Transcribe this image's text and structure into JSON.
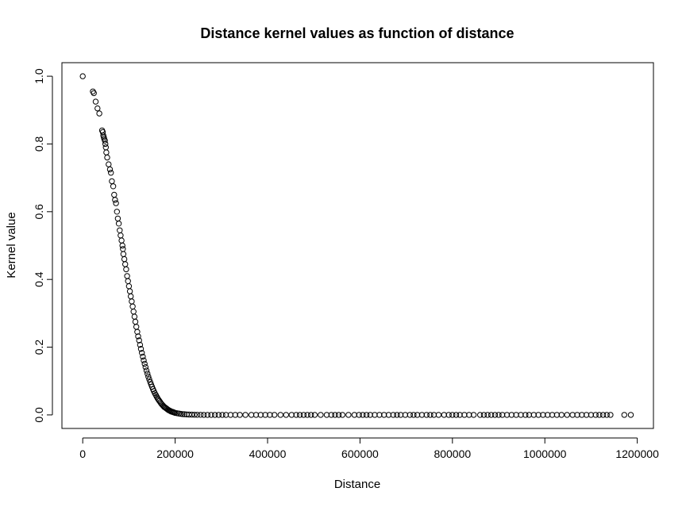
{
  "chart_data": {
    "type": "scatter",
    "title": "Distance kernel values as function of distance",
    "xlabel": "Distance",
    "ylabel": "Kernel value",
    "xlim": [
      -45000,
      1235000
    ],
    "ylim": [
      -0.04,
      1.04
    ],
    "xticks": [
      0,
      200000,
      400000,
      600000,
      800000,
      1000000,
      1200000
    ],
    "xtick_labels": [
      "0",
      "200000",
      "400000",
      "600000",
      "800000",
      "1000000",
      "1200000"
    ],
    "yticks": [
      0.0,
      0.2,
      0.4,
      0.6,
      0.8,
      1.0
    ],
    "ytick_labels": [
      "0.0",
      "0.2",
      "0.4",
      "0.6",
      "0.8",
      "1.0"
    ],
    "grid": false,
    "legend": "none",
    "marker": "open-circle",
    "colors": {
      "points": "#000000",
      "frame": "#000000",
      "background": "#ffffff"
    },
    "points": [
      [
        0,
        1.0
      ],
      [
        22000,
        0.955
      ],
      [
        24000,
        0.95
      ],
      [
        28000,
        0.925
      ],
      [
        32000,
        0.905
      ],
      [
        36000,
        0.89
      ],
      [
        42000,
        0.84
      ],
      [
        43500,
        0.835
      ],
      [
        44500,
        0.825
      ],
      [
        45500,
        0.82
      ],
      [
        46500,
        0.815
      ],
      [
        48000,
        0.81
      ],
      [
        49000,
        0.8
      ],
      [
        50000,
        0.79
      ],
      [
        51000,
        0.775
      ],
      [
        53000,
        0.76
      ],
      [
        56000,
        0.74
      ],
      [
        59000,
        0.725
      ],
      [
        61000,
        0.715
      ],
      [
        63000,
        0.69
      ],
      [
        66000,
        0.675
      ],
      [
        68000,
        0.65
      ],
      [
        70000,
        0.635
      ],
      [
        72000,
        0.625
      ],
      [
        74000,
        0.6
      ],
      [
        76000,
        0.58
      ],
      [
        78000,
        0.565
      ],
      [
        80000,
        0.545
      ],
      [
        82000,
        0.53
      ],
      [
        84000,
        0.515
      ],
      [
        86000,
        0.5
      ],
      [
        87000,
        0.49
      ],
      [
        88000,
        0.475
      ],
      [
        90000,
        0.46
      ],
      [
        92000,
        0.445
      ],
      [
        94000,
        0.43
      ],
      [
        96000,
        0.41
      ],
      [
        98000,
        0.395
      ],
      [
        100000,
        0.38
      ],
      [
        102000,
        0.365
      ],
      [
        104000,
        0.35
      ],
      [
        106000,
        0.335
      ],
      [
        108000,
        0.32
      ],
      [
        110000,
        0.305
      ],
      [
        112000,
        0.29
      ],
      [
        114000,
        0.275
      ],
      [
        116000,
        0.26
      ],
      [
        118000,
        0.245
      ],
      [
        120000,
        0.232
      ],
      [
        122000,
        0.22
      ],
      [
        124000,
        0.207
      ],
      [
        126000,
        0.195
      ],
      [
        128000,
        0.183
      ],
      [
        130000,
        0.172
      ],
      [
        132000,
        0.161
      ],
      [
        134000,
        0.151
      ],
      [
        136000,
        0.141
      ],
      [
        138000,
        0.131
      ],
      [
        140000,
        0.122
      ],
      [
        142000,
        0.113
      ],
      [
        144000,
        0.105
      ],
      [
        146000,
        0.097
      ],
      [
        148000,
        0.09
      ],
      [
        150000,
        0.083
      ],
      [
        152000,
        0.076
      ],
      [
        154000,
        0.07
      ],
      [
        156000,
        0.064
      ],
      [
        158000,
        0.059
      ],
      [
        160000,
        0.054
      ],
      [
        162000,
        0.049
      ],
      [
        164000,
        0.045
      ],
      [
        166000,
        0.041
      ],
      [
        168000,
        0.037
      ],
      [
        170000,
        0.033
      ],
      [
        172000,
        0.03
      ],
      [
        174000,
        0.027
      ],
      [
        176000,
        0.024
      ],
      [
        178000,
        0.022
      ],
      [
        180000,
        0.02
      ],
      [
        182000,
        0.018
      ],
      [
        184000,
        0.016
      ],
      [
        186000,
        0.014
      ],
      [
        188000,
        0.013
      ],
      [
        190000,
        0.011
      ],
      [
        192000,
        0.01
      ],
      [
        194000,
        0.009
      ],
      [
        196000,
        0.008
      ],
      [
        198000,
        0.007
      ],
      [
        200000,
        0.006
      ],
      [
        204000,
        0.005
      ],
      [
        208000,
        0.004
      ],
      [
        212000,
        0.003
      ],
      [
        216000,
        0.0025
      ],
      [
        220000,
        0.002
      ],
      [
        225000,
        0.0015
      ],
      [
        230000,
        0.001
      ],
      [
        236000,
        0.0008
      ],
      [
        242000,
        0.0005
      ],
      [
        248000,
        0.0003
      ],
      [
        255000,
        0.0002
      ],
      [
        262000,
        0.0001
      ],
      [
        270000,
        0
      ],
      [
        278000,
        0
      ],
      [
        286000,
        0
      ],
      [
        294000,
        0
      ],
      [
        302000,
        0
      ],
      [
        310000,
        0
      ],
      [
        320000,
        0
      ],
      [
        330000,
        0
      ],
      [
        340000,
        0
      ],
      [
        352000,
        0
      ],
      [
        365000,
        0
      ],
      [
        375000,
        0
      ],
      [
        385000,
        0
      ],
      [
        395000,
        0
      ],
      [
        405000,
        0
      ],
      [
        415000,
        0
      ],
      [
        428000,
        0
      ],
      [
        440000,
        0
      ],
      [
        452000,
        0
      ],
      [
        462000,
        0
      ],
      [
        470000,
        0
      ],
      [
        478000,
        0
      ],
      [
        486000,
        0
      ],
      [
        494000,
        0
      ],
      [
        502000,
        0
      ],
      [
        515000,
        0
      ],
      [
        528000,
        0
      ],
      [
        538000,
        0
      ],
      [
        546000,
        0
      ],
      [
        554000,
        0
      ],
      [
        562000,
        0
      ],
      [
        575000,
        0
      ],
      [
        588000,
        0
      ],
      [
        598000,
        0
      ],
      [
        606000,
        0
      ],
      [
        614000,
        0
      ],
      [
        622000,
        0
      ],
      [
        632000,
        0
      ],
      [
        642000,
        0
      ],
      [
        652000,
        0
      ],
      [
        662000,
        0
      ],
      [
        672000,
        0
      ],
      [
        680000,
        0
      ],
      [
        688000,
        0
      ],
      [
        698000,
        0
      ],
      [
        708000,
        0
      ],
      [
        716000,
        0
      ],
      [
        724000,
        0
      ],
      [
        734000,
        0
      ],
      [
        744000,
        0
      ],
      [
        752000,
        0
      ],
      [
        760000,
        0
      ],
      [
        770000,
        0
      ],
      [
        782000,
        0
      ],
      [
        792000,
        0
      ],
      [
        800000,
        0
      ],
      [
        808000,
        0
      ],
      [
        816000,
        0
      ],
      [
        826000,
        0
      ],
      [
        836000,
        0
      ],
      [
        846000,
        0
      ],
      [
        860000,
        0
      ],
      [
        868000,
        0
      ],
      [
        876000,
        0
      ],
      [
        884000,
        0
      ],
      [
        892000,
        0
      ],
      [
        900000,
        0
      ],
      [
        908000,
        0
      ],
      [
        918000,
        0
      ],
      [
        928000,
        0
      ],
      [
        938000,
        0
      ],
      [
        948000,
        0
      ],
      [
        958000,
        0
      ],
      [
        966000,
        0
      ],
      [
        976000,
        0
      ],
      [
        986000,
        0
      ],
      [
        996000,
        0
      ],
      [
        1006000,
        0
      ],
      [
        1016000,
        0
      ],
      [
        1026000,
        0
      ],
      [
        1036000,
        0
      ],
      [
        1048000,
        0
      ],
      [
        1060000,
        0
      ],
      [
        1070000,
        0
      ],
      [
        1080000,
        0
      ],
      [
        1090000,
        0
      ],
      [
        1100000,
        0
      ],
      [
        1110000,
        0
      ],
      [
        1118000,
        0
      ],
      [
        1126000,
        0
      ],
      [
        1134000,
        0
      ],
      [
        1142000,
        0
      ],
      [
        1172000,
        0
      ],
      [
        1186000,
        0
      ]
    ]
  }
}
